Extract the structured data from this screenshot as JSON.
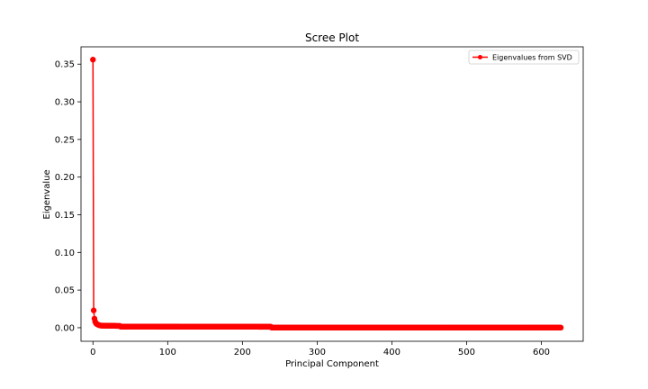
{
  "chart_data": {
    "type": "line",
    "title": "Scree Plot",
    "xlabel": "Principal Component",
    "ylabel": "Eigenvalue",
    "xlim": [
      -16,
      656
    ],
    "ylim": [
      -0.018,
      0.373
    ],
    "xticks": [
      0,
      100,
      200,
      300,
      400,
      500,
      600
    ],
    "yticks": [
      0.0,
      0.05,
      0.1,
      0.15,
      0.2,
      0.25,
      0.3,
      0.35
    ],
    "ytick_labels": [
      "0.00",
      "0.05",
      "0.10",
      "0.15",
      "0.20",
      "0.25",
      "0.30",
      "0.35"
    ],
    "grid": false,
    "legend_position": "upper right",
    "series": [
      {
        "name": "Eigenvalues from SVD",
        "color": "#ff0000",
        "marker": "circle",
        "n_points": 627,
        "x_start": 0,
        "head_values": [
          0.356,
          0.023,
          0.012,
          0.008,
          0.006,
          0.005,
          0.0045,
          0.004,
          0.0035,
          0.0032,
          0.003
        ],
        "plateaus": [
          {
            "from": 11,
            "to": 36,
            "value": 0.0028
          },
          {
            "from": 37,
            "to": 238,
            "value": 0.0015
          },
          {
            "from": 239,
            "to": 626,
            "value": 0.0002
          }
        ]
      }
    ]
  }
}
